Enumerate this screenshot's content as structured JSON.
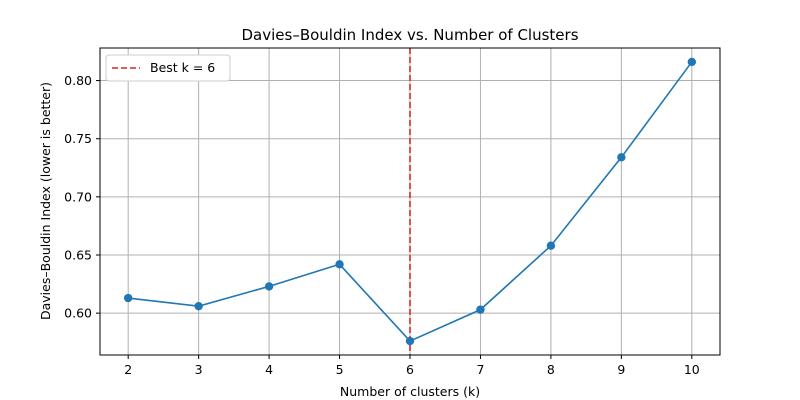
{
  "chart_data": {
    "type": "line",
    "title": "Davies–Bouldin Index vs. Number of Clusters",
    "xlabel": "Number of clusters (k)",
    "ylabel": "Davies–Bouldin Index (lower is better)",
    "x": [
      2,
      3,
      4,
      5,
      6,
      7,
      8,
      9,
      10
    ],
    "x_tick_labels": [
      "2",
      "3",
      "4",
      "5",
      "6",
      "7",
      "8",
      "9",
      "10"
    ],
    "y_ticks": [
      0.6,
      0.65,
      0.7,
      0.75,
      0.8
    ],
    "y_tick_labels": [
      "0.60",
      "0.65",
      "0.70",
      "0.75",
      "0.80"
    ],
    "xlim": [
      1.6,
      10.4
    ],
    "ylim": [
      0.564,
      0.828
    ],
    "grid": true,
    "series": [
      {
        "values": [
          0.613,
          0.606,
          0.623,
          0.642,
          0.576,
          0.603,
          0.658,
          0.734,
          0.816
        ],
        "color": "#1f77b4",
        "marker": "circle"
      }
    ],
    "reference_line": {
      "orientation": "vertical",
      "x": 6,
      "style": "dashed",
      "color": "#d62728",
      "label": "Best k = 6"
    },
    "legend": {
      "placement": "top-left",
      "entries": [
        "Best k = 6"
      ]
    }
  }
}
